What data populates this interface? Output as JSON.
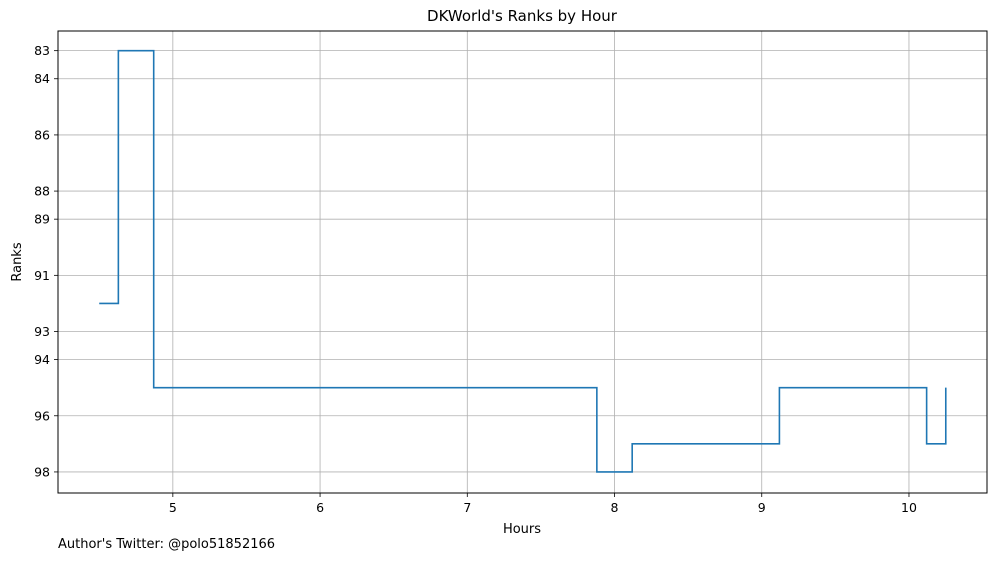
{
  "chart_data": {
    "type": "line",
    "step": "post",
    "title": "DKWorld's Ranks by Hour",
    "xlabel": "Hours",
    "ylabel": "Ranks",
    "xlim": [
      4.22,
      10.53
    ],
    "ylim": [
      98.75,
      82.3
    ],
    "y_inverted": true,
    "grid": true,
    "xticks": [
      5,
      6,
      7,
      8,
      9,
      10
    ],
    "yticks": [
      83,
      84,
      86,
      88,
      89,
      91,
      93,
      94,
      96,
      98
    ],
    "series": [
      {
        "color": "#1f77b4",
        "x": [
          4.5,
          4.63,
          4.87,
          6.38,
          7.88,
          8.12,
          9.12,
          10.12,
          10.25
        ],
        "y": [
          92,
          83,
          95,
          95,
          98,
          97,
          95,
          97,
          95
        ]
      }
    ]
  },
  "footer": "Author's Twitter: @polo51852166"
}
